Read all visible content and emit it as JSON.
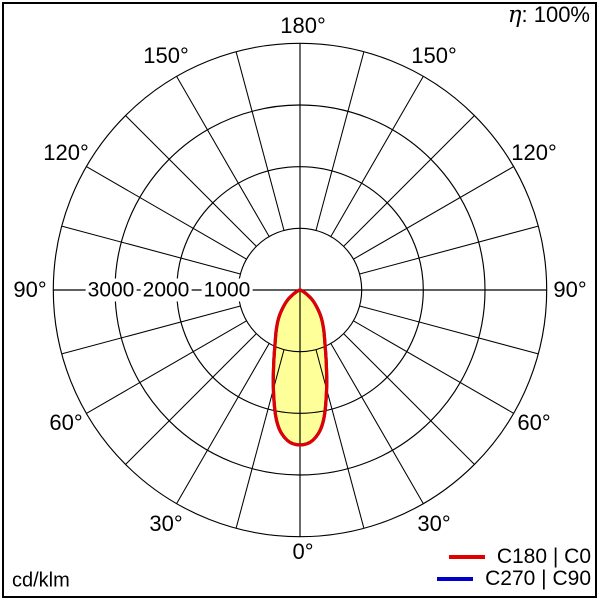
{
  "header": {
    "eta_symbol": "η",
    "eta_value": ": 100%"
  },
  "footer": {
    "units": "cd/klm"
  },
  "polar": {
    "angle_labels": [
      {
        "text": "180°"
      },
      {
        "text": "150°"
      },
      {
        "text": "150°"
      },
      {
        "text": "120°"
      },
      {
        "text": "120°"
      },
      {
        "text": "90°"
      },
      {
        "text": "90°"
      },
      {
        "text": "60°"
      },
      {
        "text": "60°"
      },
      {
        "text": "30°"
      },
      {
        "text": "30°"
      },
      {
        "text": "0°"
      }
    ],
    "radial_labels": [
      {
        "text": "3000"
      },
      {
        "text": "2000"
      },
      {
        "text": "1000"
      }
    ]
  },
  "legend": {
    "items": [
      {
        "label": "C180 | C0",
        "color": "#e00000"
      },
      {
        "label": "C270 | C90",
        "color": "#0000cc"
      }
    ]
  },
  "chart_data": {
    "type": "polar",
    "units": "cd/klm",
    "efficiency_percent": 100,
    "angle_grid_step_deg": 15,
    "angle_tick_labels_deg": [
      0,
      30,
      60,
      90,
      120,
      150,
      180
    ],
    "radial_ticks": [
      1000,
      2000,
      3000
    ],
    "radial_max": 4000,
    "grid_color": "#000000",
    "fill_color": "#ffff99",
    "series": [
      {
        "name": "C180 | C0",
        "color": "#e00000",
        "gamma_deg": [
          0,
          5,
          10,
          15,
          20,
          25,
          30,
          35,
          40,
          45,
          50,
          55,
          60,
          65,
          70,
          75,
          80,
          85,
          90
        ],
        "intensity_cd_klm": [
          2530,
          2470,
          2220,
          1690,
          1250,
          960,
          780,
          640,
          510,
          380,
          290,
          190,
          110,
          55,
          25,
          10,
          5,
          0,
          0
        ]
      },
      {
        "name": "C270 | C90",
        "color": "#0000cc",
        "gamma_deg": [
          0,
          5,
          10,
          15,
          20,
          25,
          30,
          35,
          40,
          45,
          50,
          55,
          60,
          65,
          70,
          75,
          80,
          85,
          90
        ],
        "intensity_cd_klm": [
          2530,
          2470,
          2220,
          1690,
          1250,
          960,
          780,
          640,
          510,
          380,
          290,
          190,
          110,
          55,
          25,
          10,
          5,
          0,
          0
        ]
      }
    ]
  }
}
